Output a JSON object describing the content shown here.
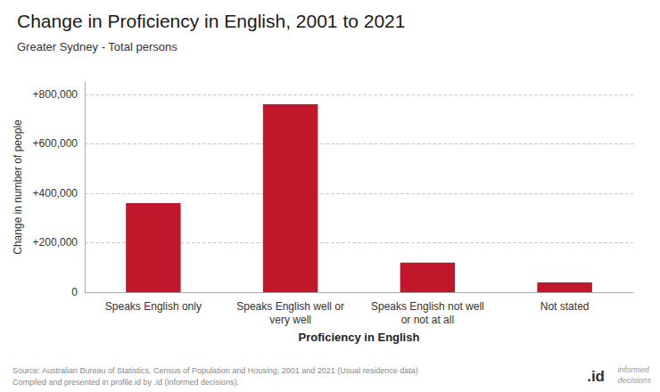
{
  "chart_data": {
    "type": "bar",
    "title": "Change in Proficiency in English, 2001 to 2021",
    "subtitle": "Greater Sydney - Total persons",
    "categories": [
      "Speaks English only",
      "Speaks English well or\nvery well",
      "Speaks English not well\nor not at all",
      "Not stated"
    ],
    "values": [
      360000,
      760000,
      120000,
      40000
    ],
    "color": "#C0182A",
    "xlabel": "Proficiency in English",
    "ylabel": "Change in number of people",
    "ylim": [
      0,
      850000
    ],
    "yticks": [
      0,
      {
        "value": 200000,
        "label": "+200,000"
      },
      {
        "value": 400000,
        "label": "+400,000"
      },
      {
        "value": 600000,
        "label": "+600,000"
      },
      {
        "value": 800000,
        "label": "+800,000"
      }
    ],
    "grid": true,
    "annotations": [
      "Source: Australian Bureau of Statistics, Census of Population and Housing, 2001 and 2021 (Usual residence data)",
      "Compiled and presented in profile.id by .id (informed decisions).",
      "informed\ndecisions",
      ".id"
    ]
  }
}
